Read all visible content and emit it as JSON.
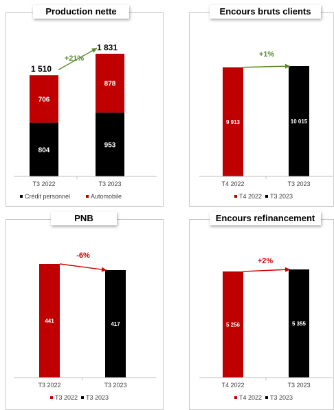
{
  "colors": {
    "red": "#c00000",
    "black": "#000000",
    "green_arrow": "#5b8a2e",
    "red_arrow": "#cc0000"
  },
  "chart_data": [
    {
      "type": "bar",
      "stacked": true,
      "title": "Production nette",
      "categories": [
        "T3 2022",
        "T3 2023"
      ],
      "series": [
        {
          "name": "Crédit personnel",
          "values": [
            804,
            953
          ],
          "labels": [
            "804",
            "953"
          ],
          "color": "#000000"
        },
        {
          "name": "Automobile",
          "values": [
            706,
            878
          ],
          "labels": [
            "706",
            "878"
          ],
          "color": "#c00000"
        }
      ],
      "totals": [
        "1 510",
        "1 831"
      ],
      "change": "+21%",
      "change_color": "#5b8a2e",
      "ylim": [
        0,
        2000
      ],
      "legend": "bottom"
    },
    {
      "type": "bar",
      "title": "Encours bruts clients",
      "categories": [
        "T4 2022",
        "T3 2023"
      ],
      "values": [
        9913,
        10015
      ],
      "labels": [
        "9 913",
        "10 015"
      ],
      "colors": [
        "#c00000",
        "#000000"
      ],
      "legend_entries": [
        "T4 2022",
        "T3 2023"
      ],
      "change": "+1%",
      "change_color": "#5b8a2e",
      "legend": "bottom"
    },
    {
      "type": "bar",
      "title": "PNB",
      "categories": [
        "T3 2022",
        "T3 2023"
      ],
      "values": [
        441,
        417
      ],
      "labels": [
        "441",
        "417"
      ],
      "colors": [
        "#c00000",
        "#000000"
      ],
      "legend_entries": [
        "T3 2022",
        "T3 2023"
      ],
      "change": "-6%",
      "change_color": "#cc0000",
      "legend": "bottom"
    },
    {
      "type": "bar",
      "title": "Encours refinancement",
      "categories": [
        "T4 2022",
        "T3 2023"
      ],
      "values": [
        5256,
        5355
      ],
      "labels": [
        "5 256",
        "5 355"
      ],
      "colors": [
        "#c00000",
        "#000000"
      ],
      "legend_entries": [
        "T4 2022",
        "T3 2023"
      ],
      "change": "+2%",
      "change_color": "#cc0000",
      "legend": "bottom"
    }
  ]
}
